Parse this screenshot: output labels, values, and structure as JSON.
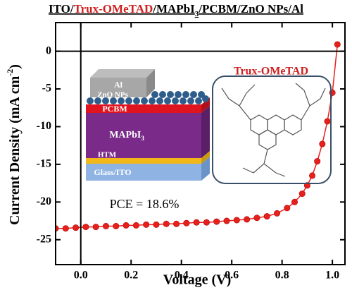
{
  "chart_data": {
    "type": "line",
    "title_parts": [
      "ITO/",
      "Trux-OMeTAD",
      "/MAPbI",
      "3",
      "/PCBM/ZnO NPs/Al"
    ],
    "xlabel": "Voltage (V)",
    "ylabel_parts": [
      "Current Density (mA cm",
      "-2",
      ")"
    ],
    "annotations": {
      "pce": "PCE = 18.6%",
      "molecule": "Trux-OMeTAD"
    },
    "device_layers": {
      "al": "Al",
      "zno": "ZnO NPs",
      "pcbm": "PCBM",
      "perovskite": "MAPbI",
      "perovskite_sub": "3",
      "htm": "HTM",
      "substrate": "Glass/ITO"
    },
    "x": [
      -0.1,
      -0.06,
      -0.02,
      0.02,
      0.06,
      0.1,
      0.14,
      0.18,
      0.22,
      0.26,
      0.3,
      0.34,
      0.38,
      0.42,
      0.46,
      0.5,
      0.54,
      0.58,
      0.62,
      0.66,
      0.7,
      0.74,
      0.78,
      0.82,
      0.85,
      0.88,
      0.9,
      0.92,
      0.94,
      0.96,
      0.98,
      1.0,
      1.02
    ],
    "series": [
      {
        "name": "Trux-OMeTAD",
        "color": "#e8201c",
        "values": [
          -23.5,
          -23.5,
          -23.4,
          -23.3,
          -23.3,
          -23.2,
          -23.2,
          -23.1,
          -23.1,
          -23.0,
          -23.0,
          -22.9,
          -22.9,
          -22.8,
          -22.7,
          -22.7,
          -22.6,
          -22.5,
          -22.4,
          -22.3,
          -22.1,
          -21.9,
          -21.5,
          -20.8,
          -20.0,
          -18.9,
          -17.8,
          -16.5,
          -14.6,
          -12.3,
          -9.3,
          -5.5,
          0.9
        ]
      }
    ],
    "xlim": [
      -0.1,
      1.05
    ],
    "ylim": [
      -28.3,
      3.8
    ],
    "xticks": [
      {
        "value": 0,
        "label": "0.0"
      },
      0.2,
      0.4,
      0.6,
      0.8,
      {
        "value": 1,
        "label": "1.0"
      }
    ],
    "yticks": [
      -25,
      -20,
      -15,
      -10,
      -5,
      0
    ]
  }
}
